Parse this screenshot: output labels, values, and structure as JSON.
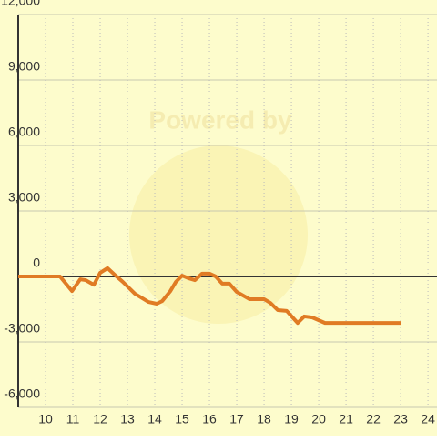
{
  "chart_data": {
    "type": "line",
    "watermark": "Powered by",
    "x": [
      9,
      10.53,
      10.97,
      11.27,
      11.47,
      11.77,
      12,
      12.27,
      12.53,
      12.83,
      13.27,
      13.77,
      14.07,
      14.27,
      14.57,
      14.77,
      15,
      15.23,
      15.47,
      15.73,
      16,
      16.23,
      16.47,
      16.73,
      17,
      17.47,
      18,
      18.23,
      18.5,
      18.83,
      19.23,
      19.47,
      19.77,
      20.23,
      23
    ],
    "series": [
      {
        "color": "#e07b24",
        "values": [
          0,
          0,
          -670,
          -130,
          -170,
          -380,
          170,
          380,
          80,
          -250,
          -790,
          -1170,
          -1250,
          -1130,
          -670,
          -250,
          40,
          -80,
          -170,
          130,
          130,
          0,
          -330,
          -330,
          -710,
          -1040,
          -1040,
          -1210,
          -1540,
          -1580,
          -2130,
          -1830,
          -1880,
          -2130,
          -2130
        ]
      }
    ],
    "xlim": [
      9,
      24.33
    ],
    "xticks": [
      10,
      11,
      12,
      13,
      14,
      15,
      16,
      17,
      18,
      19,
      20,
      21,
      22,
      23,
      24
    ],
    "ylim": [
      -6000,
      12000
    ],
    "yticks": [
      {
        "value": -6000,
        "label": "-6,000"
      },
      {
        "value": -3000,
        "label": "-3,000"
      },
      0,
      {
        "value": 3000,
        "label": "3,000"
      },
      {
        "value": 6000,
        "label": "6,000"
      },
      {
        "value": 9000,
        "label": "9,000"
      },
      {
        "value": 12000,
        "label": "12,000"
      }
    ],
    "grid": true,
    "background": "#fdfccc"
  }
}
